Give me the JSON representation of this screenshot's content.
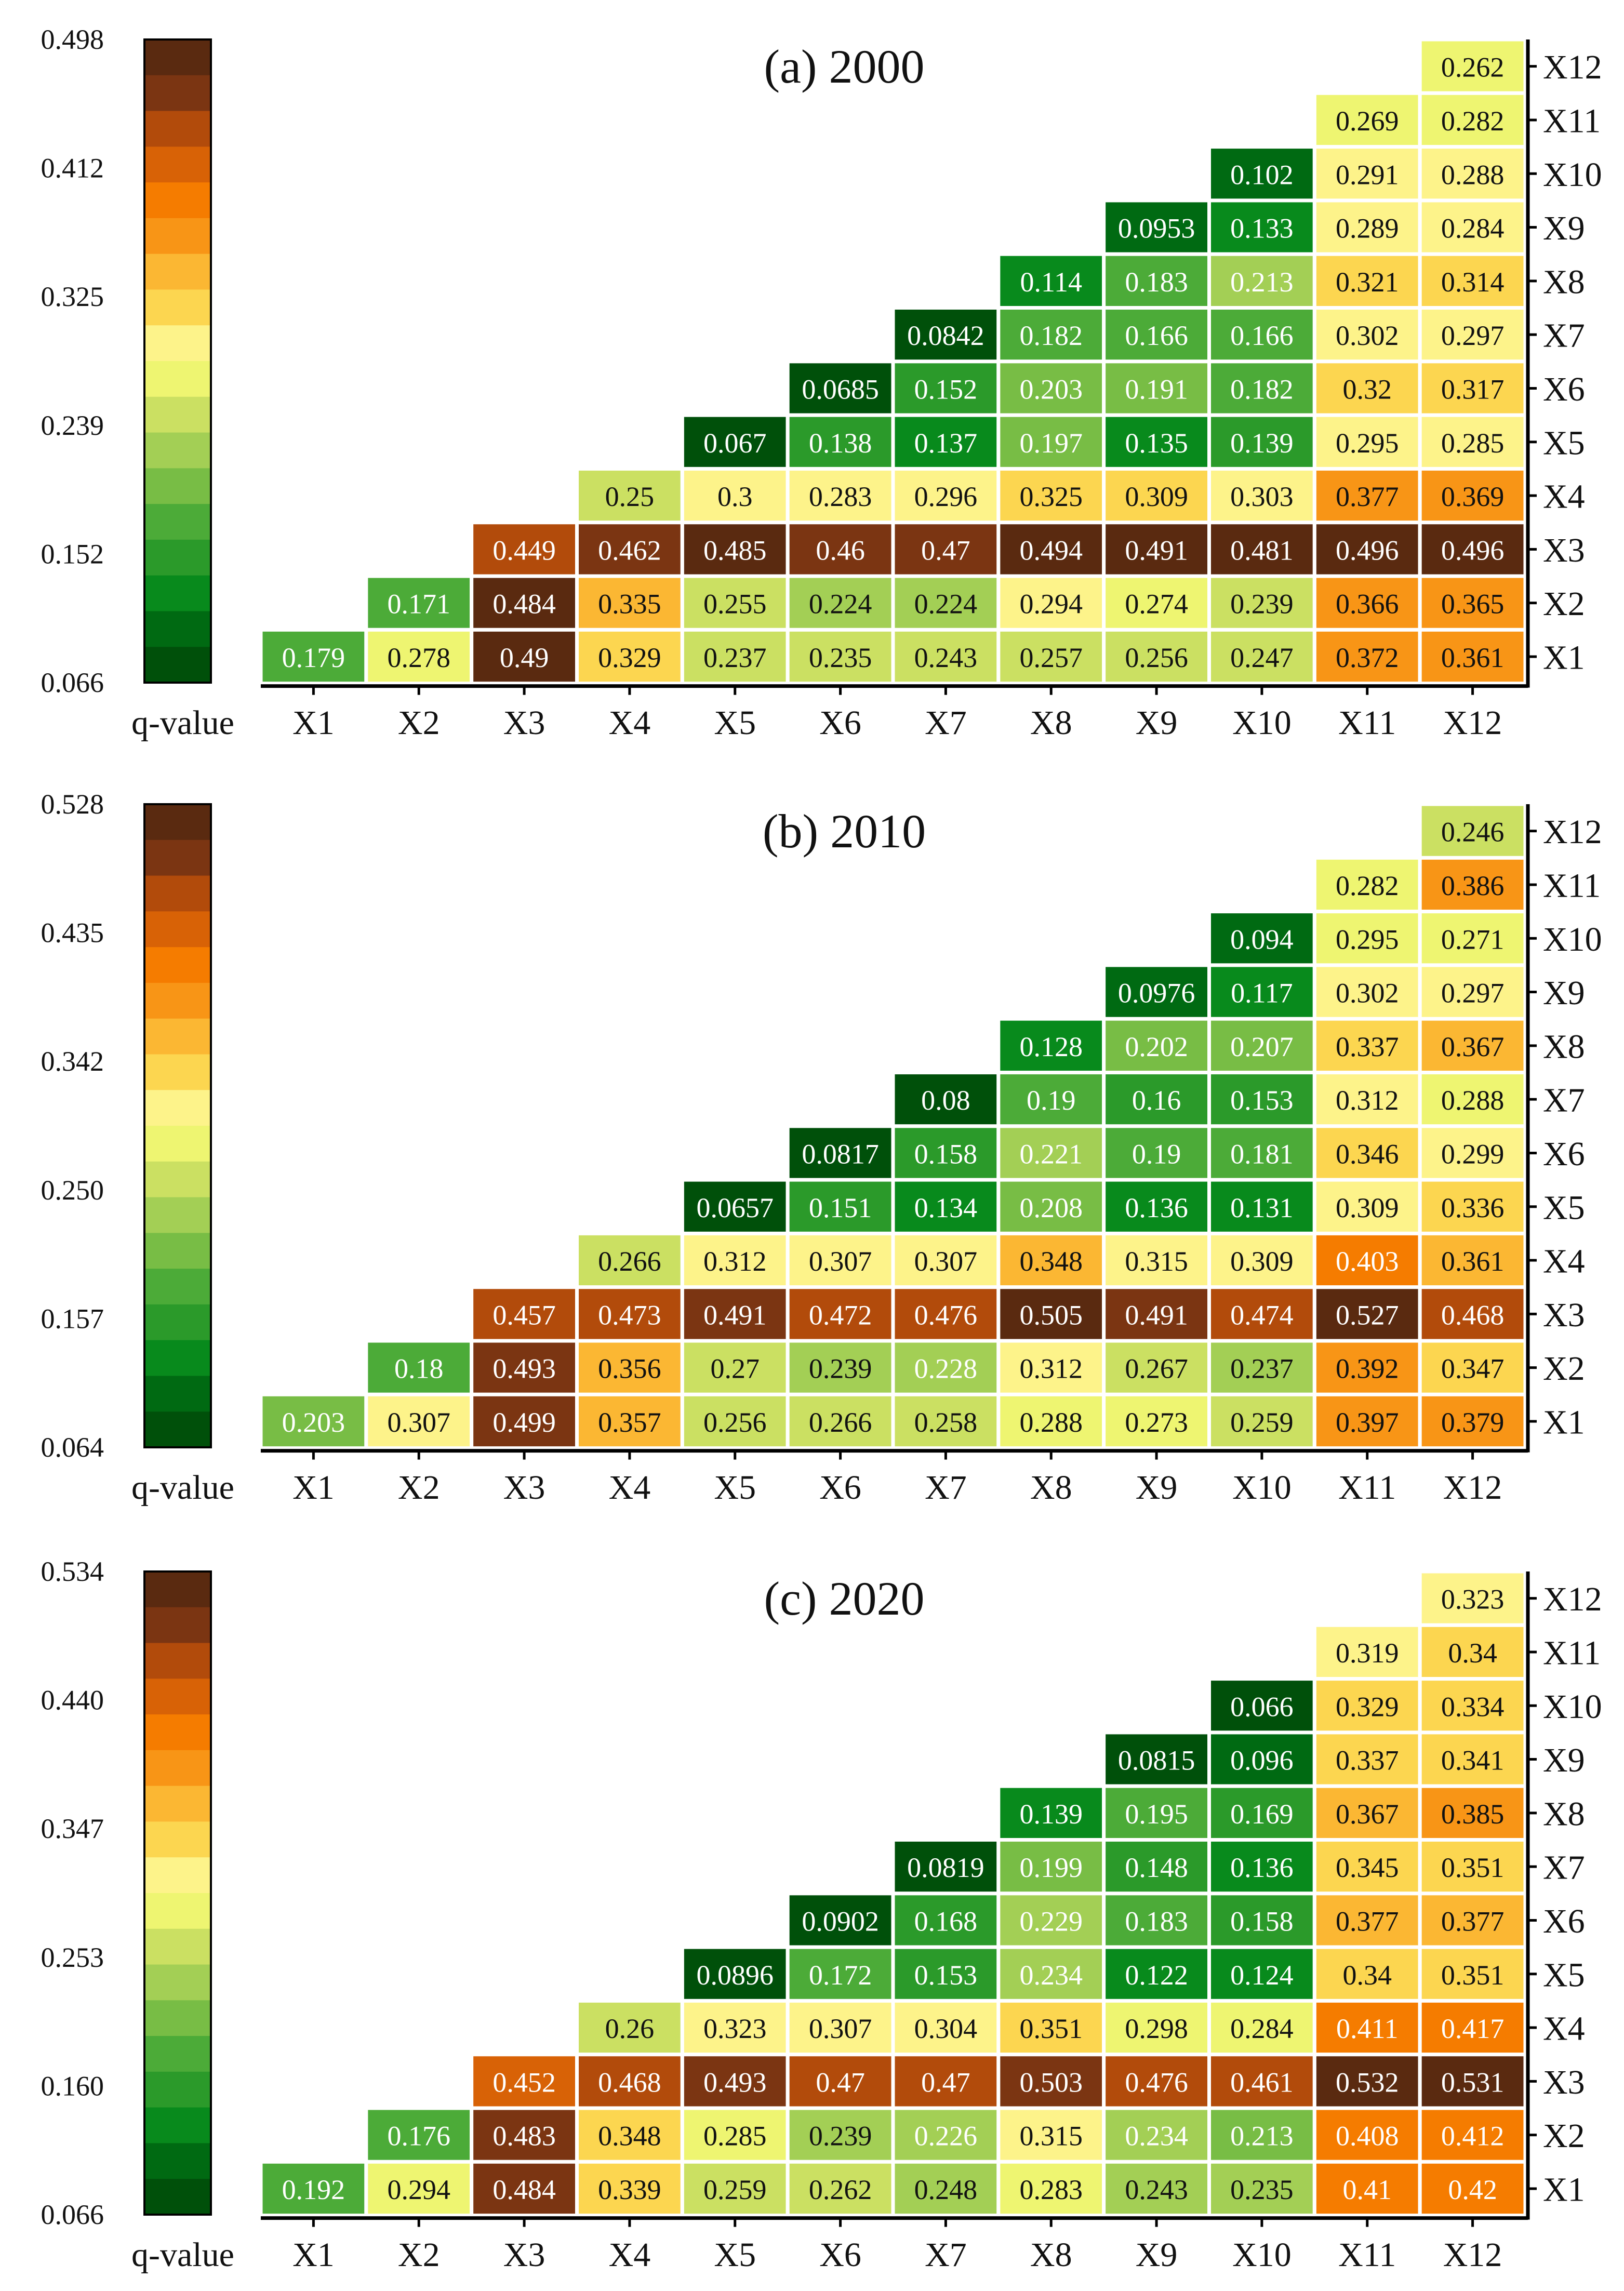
{
  "legend_label": "q-value",
  "palette": [
    "#00500a",
    "#006a12",
    "#088a1c",
    "#2b9a2a",
    "#4cab38",
    "#78bd45",
    "#a3cf55",
    "#cbe062",
    "#eef571",
    "#fdf38a",
    "#fcd650",
    "#fbb733",
    "#f89516",
    "#f57c00",
    "#d86206",
    "#b24b0b",
    "#7b3512",
    "#5a2a10"
  ],
  "cell_border_color": "#ffffff",
  "chart_data": [
    {
      "type": "heatmap",
      "title": "(a) 2000",
      "x_categories": [
        "X1",
        "X2",
        "X3",
        "X4",
        "X5",
        "X6",
        "X7",
        "X8",
        "X9",
        "X10",
        "X11",
        "X12"
      ],
      "y_categories": [
        "X12",
        "X11",
        "X10",
        "X9",
        "X8",
        "X7",
        "X6",
        "X5",
        "X4",
        "X3",
        "X2",
        "X1"
      ],
      "colorbar": {
        "min": 0.066,
        "max": 0.498,
        "ticks": [
          "0.498",
          "0.412",
          "0.325",
          "0.239",
          "0.152",
          "0.066"
        ]
      },
      "rows": [
        [
          "",
          "",
          "",
          "",
          "",
          "",
          "",
          "",
          "",
          "",
          "",
          "0.262"
        ],
        [
          "",
          "",
          "",
          "",
          "",
          "",
          "",
          "",
          "",
          "",
          "0.269",
          "0.282"
        ],
        [
          "",
          "",
          "",
          "",
          "",
          "",
          "",
          "",
          "",
          "0.102",
          "0.291",
          "0.288"
        ],
        [
          "",
          "",
          "",
          "",
          "",
          "",
          "",
          "",
          "0.0953",
          "0.133",
          "0.289",
          "0.284"
        ],
        [
          "",
          "",
          "",
          "",
          "",
          "",
          "",
          "0.114",
          "0.183",
          "0.213",
          "0.321",
          "0.314"
        ],
        [
          "",
          "",
          "",
          "",
          "",
          "",
          "0.0842",
          "0.182",
          "0.166",
          "0.166",
          "0.302",
          "0.297"
        ],
        [
          "",
          "",
          "",
          "",
          "",
          "0.0685",
          "0.152",
          "0.203",
          "0.191",
          "0.182",
          "0.32",
          "0.317"
        ],
        [
          "",
          "",
          "",
          "",
          "0.067",
          "0.138",
          "0.137",
          "0.197",
          "0.135",
          "0.139",
          "0.295",
          "0.285"
        ],
        [
          "",
          "",
          "",
          "0.25",
          "0.3",
          "0.283",
          "0.296",
          "0.325",
          "0.309",
          "0.303",
          "0.377",
          "0.369"
        ],
        [
          "",
          "",
          "0.449",
          "0.462",
          "0.485",
          "0.46",
          "0.47",
          "0.494",
          "0.491",
          "0.481",
          "0.496",
          "0.496"
        ],
        [
          "",
          "0.171",
          "0.484",
          "0.335",
          "0.255",
          "0.224",
          "0.224",
          "0.294",
          "0.274",
          "0.239",
          "0.366",
          "0.365"
        ],
        [
          "0.179",
          "0.278",
          "0.49",
          "0.329",
          "0.237",
          "0.235",
          "0.243",
          "0.257",
          "0.256",
          "0.247",
          "0.372",
          "0.361"
        ]
      ]
    },
    {
      "type": "heatmap",
      "title": "(b) 2010",
      "x_categories": [
        "X1",
        "X2",
        "X3",
        "X4",
        "X5",
        "X6",
        "X7",
        "X8",
        "X9",
        "X10",
        "X11",
        "X12"
      ],
      "y_categories": [
        "X12",
        "X11",
        "X10",
        "X9",
        "X8",
        "X7",
        "X6",
        "X5",
        "X4",
        "X3",
        "X2",
        "X1"
      ],
      "colorbar": {
        "min": 0.064,
        "max": 0.528,
        "ticks": [
          "0.528",
          "0.435",
          "0.342",
          "0.250",
          "0.157",
          "0.064"
        ]
      },
      "rows": [
        [
          "",
          "",
          "",
          "",
          "",
          "",
          "",
          "",
          "",
          "",
          "",
          "0.246"
        ],
        [
          "",
          "",
          "",
          "",
          "",
          "",
          "",
          "",
          "",
          "",
          "0.282",
          "0.386"
        ],
        [
          "",
          "",
          "",
          "",
          "",
          "",
          "",
          "",
          "",
          "0.094",
          "0.295",
          "0.271"
        ],
        [
          "",
          "",
          "",
          "",
          "",
          "",
          "",
          "",
          "0.0976",
          "0.117",
          "0.302",
          "0.297"
        ],
        [
          "",
          "",
          "",
          "",
          "",
          "",
          "",
          "0.128",
          "0.202",
          "0.207",
          "0.337",
          "0.367"
        ],
        [
          "",
          "",
          "",
          "",
          "",
          "",
          "0.08",
          "0.19",
          "0.16",
          "0.153",
          "0.312",
          "0.288"
        ],
        [
          "",
          "",
          "",
          "",
          "",
          "0.0817",
          "0.158",
          "0.221",
          "0.19",
          "0.181",
          "0.346",
          "0.299"
        ],
        [
          "",
          "",
          "",
          "",
          "0.0657",
          "0.151",
          "0.134",
          "0.208",
          "0.136",
          "0.131",
          "0.309",
          "0.336"
        ],
        [
          "",
          "",
          "",
          "0.266",
          "0.312",
          "0.307",
          "0.307",
          "0.348",
          "0.315",
          "0.309",
          "0.403",
          "0.361"
        ],
        [
          "",
          "",
          "0.457",
          "0.473",
          "0.491",
          "0.472",
          "0.476",
          "0.505",
          "0.491",
          "0.474",
          "0.527",
          "0.468"
        ],
        [
          "",
          "0.18",
          "0.493",
          "0.356",
          "0.27",
          "0.239",
          "0.228",
          "0.312",
          "0.267",
          "0.237",
          "0.392",
          "0.347"
        ],
        [
          "0.203",
          "0.307",
          "0.499",
          "0.357",
          "0.256",
          "0.266",
          "0.258",
          "0.288",
          "0.273",
          "0.259",
          "0.397",
          "0.379"
        ]
      ]
    },
    {
      "type": "heatmap",
      "title": "(c) 2020",
      "x_categories": [
        "X1",
        "X2",
        "X3",
        "X4",
        "X5",
        "X6",
        "X7",
        "X8",
        "X9",
        "X10",
        "X11",
        "X12"
      ],
      "y_categories": [
        "X12",
        "X11",
        "X10",
        "X9",
        "X8",
        "X7",
        "X6",
        "X5",
        "X4",
        "X3",
        "X2",
        "X1"
      ],
      "colorbar": {
        "min": 0.066,
        "max": 0.534,
        "ticks": [
          "0.534",
          "0.440",
          "0.347",
          "0.253",
          "0.160",
          "0.066"
        ]
      },
      "rows": [
        [
          "",
          "",
          "",
          "",
          "",
          "",
          "",
          "",
          "",
          "",
          "",
          "0.323"
        ],
        [
          "",
          "",
          "",
          "",
          "",
          "",
          "",
          "",
          "",
          "",
          "0.319",
          "0.34"
        ],
        [
          "",
          "",
          "",
          "",
          "",
          "",
          "",
          "",
          "",
          "0.066",
          "0.329",
          "0.334"
        ],
        [
          "",
          "",
          "",
          "",
          "",
          "",
          "",
          "",
          "0.0815",
          "0.096",
          "0.337",
          "0.341"
        ],
        [
          "",
          "",
          "",
          "",
          "",
          "",
          "",
          "0.139",
          "0.195",
          "0.169",
          "0.367",
          "0.385"
        ],
        [
          "",
          "",
          "",
          "",
          "",
          "",
          "0.0819",
          "0.199",
          "0.148",
          "0.136",
          "0.345",
          "0.351"
        ],
        [
          "",
          "",
          "",
          "",
          "",
          "0.0902",
          "0.168",
          "0.229",
          "0.183",
          "0.158",
          "0.377",
          "0.377"
        ],
        [
          "",
          "",
          "",
          "",
          "0.0896",
          "0.172",
          "0.153",
          "0.234",
          "0.122",
          "0.124",
          "0.34",
          "0.351"
        ],
        [
          "",
          "",
          "",
          "0.26",
          "0.323",
          "0.307",
          "0.304",
          "0.351",
          "0.298",
          "0.284",
          "0.411",
          "0.417"
        ],
        [
          "",
          "",
          "0.452",
          "0.468",
          "0.493",
          "0.47",
          "0.47",
          "0.503",
          "0.476",
          "0.461",
          "0.532",
          "0.531"
        ],
        [
          "",
          "0.176",
          "0.483",
          "0.348",
          "0.285",
          "0.239",
          "0.226",
          "0.315",
          "0.234",
          "0.213",
          "0.408",
          "0.412"
        ],
        [
          "0.192",
          "0.294",
          "0.484",
          "0.339",
          "0.259",
          "0.262",
          "0.248",
          "0.283",
          "0.243",
          "0.235",
          "0.41",
          "0.42"
        ]
      ]
    }
  ]
}
